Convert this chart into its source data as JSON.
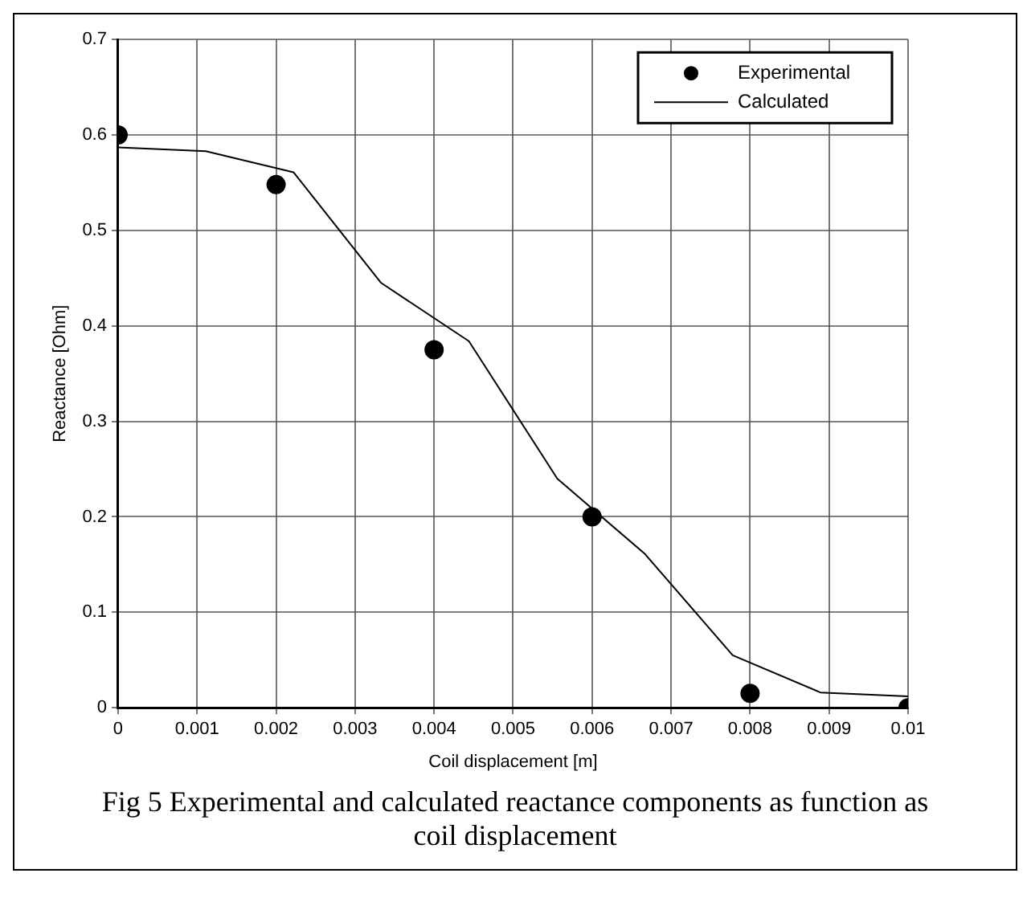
{
  "chart_data": {
    "type": "line",
    "xlabel": "Coil displacement [m]",
    "ylabel": "Reactance [Ohm]",
    "annotations": [
      "Fig 5 Experimental and calculated reactance components as function as coil displacement"
    ],
    "xlim": [
      0,
      0.01
    ],
    "xticks": [
      0,
      0.001,
      0.002,
      0.003,
      0.004,
      0.005,
      0.006,
      0.007,
      0.008,
      0.009,
      0.01
    ],
    "ylim": [
      0,
      0.7
    ],
    "yticks": [
      0,
      0.1,
      0.2,
      0.3,
      0.4,
      0.5,
      0.6,
      0.7
    ],
    "grid": true,
    "legend": "top right",
    "series": [
      {
        "name": "Experimental",
        "type": "scatter",
        "marker": "circle",
        "color": "#000000",
        "x": [
          0,
          0.002,
          0.004,
          0.006,
          0.008,
          0.01
        ],
        "values": [
          0.6,
          0.548,
          0.375,
          0.2,
          0.015,
          0.0
        ]
      },
      {
        "name": "Calculated",
        "type": "line",
        "marker": "none",
        "line_style": "solid",
        "color": "#000000",
        "x": [
          0,
          0.00111,
          0.00222,
          0.00333,
          0.00444,
          0.00556,
          0.00667,
          0.00778,
          0.00889,
          0.01
        ],
        "values": [
          0.587,
          0.583,
          0.561,
          0.445,
          0.384,
          0.24,
          0.161,
          0.055,
          0.016,
          0.012
        ]
      }
    ]
  }
}
